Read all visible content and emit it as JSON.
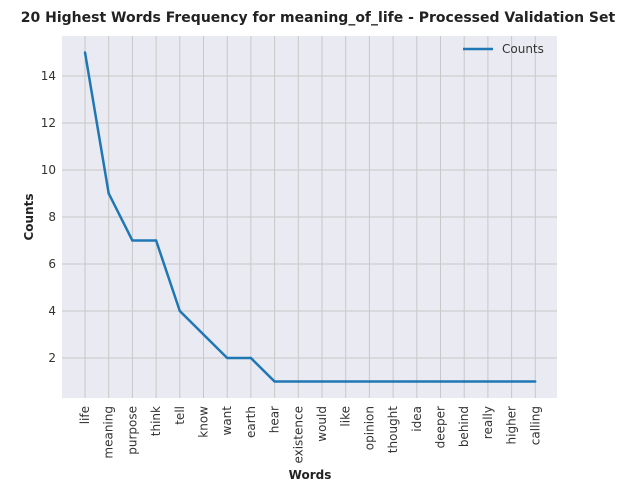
{
  "chart_data": {
    "type": "line",
    "title": "20 Highest Words Frequency for meaning_of_life - Processed Validation Set",
    "xlabel": "Words",
    "ylabel": "Counts",
    "categories": [
      "life",
      "meaning",
      "purpose",
      "think",
      "tell",
      "know",
      "want",
      "earth",
      "hear",
      "existence",
      "would",
      "like",
      "opinion",
      "thought",
      "idea",
      "deeper",
      "behind",
      "really",
      "higher",
      "calling"
    ],
    "series": [
      {
        "name": "Counts",
        "values": [
          15,
          9,
          7,
          7,
          4,
          3,
          2,
          2,
          1,
          1,
          1,
          1,
          1,
          1,
          1,
          1,
          1,
          1,
          1,
          1
        ]
      }
    ],
    "ylim": [
      0.3,
      15.7
    ],
    "yticks": [
      2,
      4,
      6,
      8,
      10,
      12,
      14
    ],
    "grid": true,
    "legend_position": "top-right",
    "colors": {
      "line": "#1f77b4",
      "plot_bg": "#eaeaf2",
      "grid": "#c8c8c8"
    }
  }
}
